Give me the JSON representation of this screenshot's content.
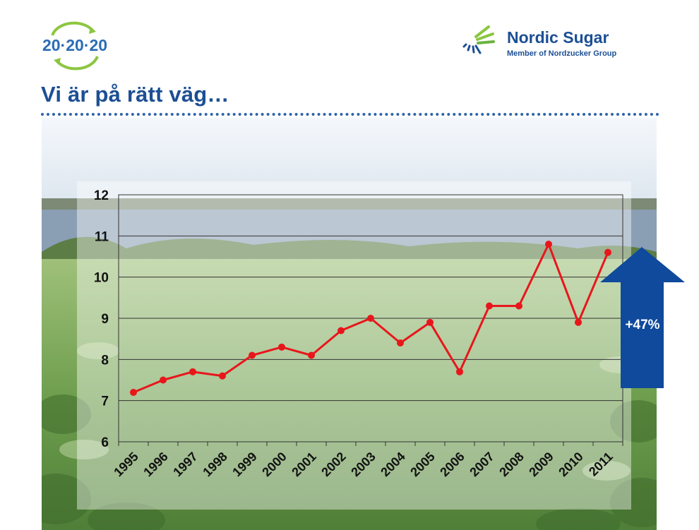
{
  "header": {
    "logo_left_text": "20·20·20",
    "brand_name": "Nordic Sugar",
    "brand_tagline": "Member of Nordzucker Group"
  },
  "slide": {
    "title": "Vi är på rätt väg…"
  },
  "callout": {
    "label": "+47%"
  },
  "colors": {
    "title": "#1c4f94",
    "series_line": "#e8161b",
    "arrow": "#0f4a9c",
    "logo_green": "#8cc63f",
    "logo_blue": "#2a6db5"
  },
  "chart_data": {
    "type": "line",
    "categories": [
      "1995",
      "1996",
      "1997",
      "1998",
      "1999",
      "2000",
      "2001",
      "2002",
      "2003",
      "2004",
      "2005",
      "2006",
      "2007",
      "2008",
      "2009",
      "2010",
      "2011"
    ],
    "series": [
      {
        "values": [
          7.2,
          7.5,
          7.7,
          7.6,
          8.1,
          8.3,
          8.1,
          8.7,
          9.0,
          8.4,
          8.9,
          7.7,
          9.3,
          9.3,
          10.8,
          8.9,
          10.6
        ]
      }
    ],
    "title": "",
    "xlabel": "",
    "ylabel": "",
    "ylim": [
      6,
      12
    ],
    "yticks": [
      "6",
      "7",
      "8",
      "9",
      "10",
      "11",
      "12"
    ],
    "grid": true,
    "legend": "none"
  }
}
